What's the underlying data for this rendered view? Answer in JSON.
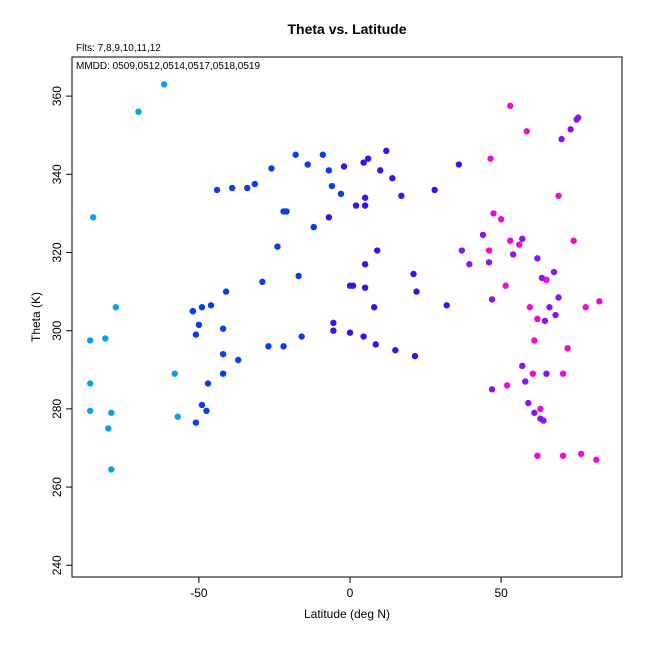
{
  "chart_data": {
    "type": "scatter",
    "title": "Theta vs. Latitude",
    "subtitle": "Flts: 7,8,9,10,11,12",
    "annotation": "MMDD: 0509,0512,0514,0517,0518,0519",
    "xlabel": "Latitude (deg N)",
    "ylabel": "Theta (K)",
    "xlim": [
      -92,
      90
    ],
    "ylim": [
      237,
      370
    ],
    "xticks": [
      -50,
      0,
      50
    ],
    "yticks": [
      240,
      260,
      280,
      300,
      320,
      340,
      360
    ],
    "xtick_labels": [
      "-50",
      "0",
      "50"
    ],
    "ytick_labels": [
      "240",
      "260",
      "280",
      "300",
      "320",
      "340",
      "360"
    ],
    "grid": false,
    "legend": "none",
    "series": [
      {
        "color": "#0aa0f0",
        "x": [
          -61.5,
          -70,
          -85,
          -77.5,
          -86,
          -81,
          -86,
          -79,
          -86,
          -80,
          -79,
          -58,
          -57
        ],
        "y": [
          363,
          356,
          329,
          306,
          297.5,
          298,
          286.5,
          279,
          279.5,
          275,
          264.5,
          289,
          278
        ]
      },
      {
        "color": "#0a3cf0",
        "x": [
          -44,
          -39,
          -34,
          -31.5,
          -26,
          -22,
          -18,
          -14,
          -9,
          -7,
          -6,
          -3,
          -21,
          -17,
          -12,
          -24,
          -29,
          -27,
          -22,
          -16,
          -41,
          -46,
          -42,
          -52,
          -49,
          -50,
          -51,
          -52,
          -42,
          -47,
          -42,
          -37,
          -49,
          -51,
          -47.5
        ],
        "y": [
          336,
          336.5,
          336.5,
          337.5,
          341.5,
          330.5,
          345,
          342.5,
          345,
          341,
          337,
          335,
          330.5,
          314,
          326.5,
          321.5,
          312.5,
          296,
          296,
          298.5,
          310,
          306.5,
          300.5,
          305,
          306,
          301.5,
          299,
          305,
          294,
          286.5,
          289,
          292.5,
          281,
          276.5,
          279.5
        ]
      },
      {
        "color": "#3a0ff0",
        "x": [
          -2,
          2,
          4.5,
          6,
          10,
          12,
          14,
          17,
          28,
          36,
          5,
          5,
          -7,
          1,
          9,
          5,
          21,
          22,
          32,
          0,
          5,
          8,
          -5.5,
          -5.5,
          0,
          4.5,
          8.5,
          15,
          21.5
        ],
        "y": [
          342,
          332,
          343,
          344,
          341,
          346,
          339,
          334.5,
          336,
          342.5,
          334,
          332,
          329,
          311.5,
          320.5,
          317,
          314.5,
          310,
          306.5,
          311.5,
          311,
          306,
          302,
          300,
          299.5,
          298.5,
          296.5,
          295,
          293.5
        ]
      },
      {
        "color": "#8a14f0",
        "x": [
          75,
          75.5,
          73,
          70,
          37,
          39.5,
          44,
          46,
          54,
          57,
          62,
          63.5,
          65,
          66,
          67.5,
          69,
          68,
          64.5,
          47,
          47,
          58,
          59,
          61,
          63,
          64,
          65,
          57
        ],
        "y": [
          354,
          354.5,
          351.5,
          349,
          320.5,
          317,
          324.5,
          317.5,
          319.5,
          323.5,
          318.5,
          313.5,
          313,
          306,
          315,
          308.5,
          304,
          302.5,
          308,
          285,
          287,
          281.5,
          279,
          277.5,
          277,
          289,
          291
        ]
      },
      {
        "color": "#ee0ad2",
        "x": [
          53,
          58.5,
          46.5,
          69,
          47.5,
          50,
          46,
          53,
          56,
          74,
          51.5,
          65,
          59.5,
          62,
          78,
          82.5,
          61,
          72,
          52,
          60.5,
          70.5,
          63,
          62,
          70.5,
          76.5,
          81.5
        ],
        "y": [
          357.5,
          351,
          344,
          334.5,
          330,
          328.5,
          320.5,
          323,
          322,
          323,
          311.5,
          313,
          306,
          303,
          306,
          307.5,
          297.5,
          295.5,
          286,
          289,
          289,
          280,
          268,
          268,
          268.5,
          267
        ]
      }
    ]
  }
}
